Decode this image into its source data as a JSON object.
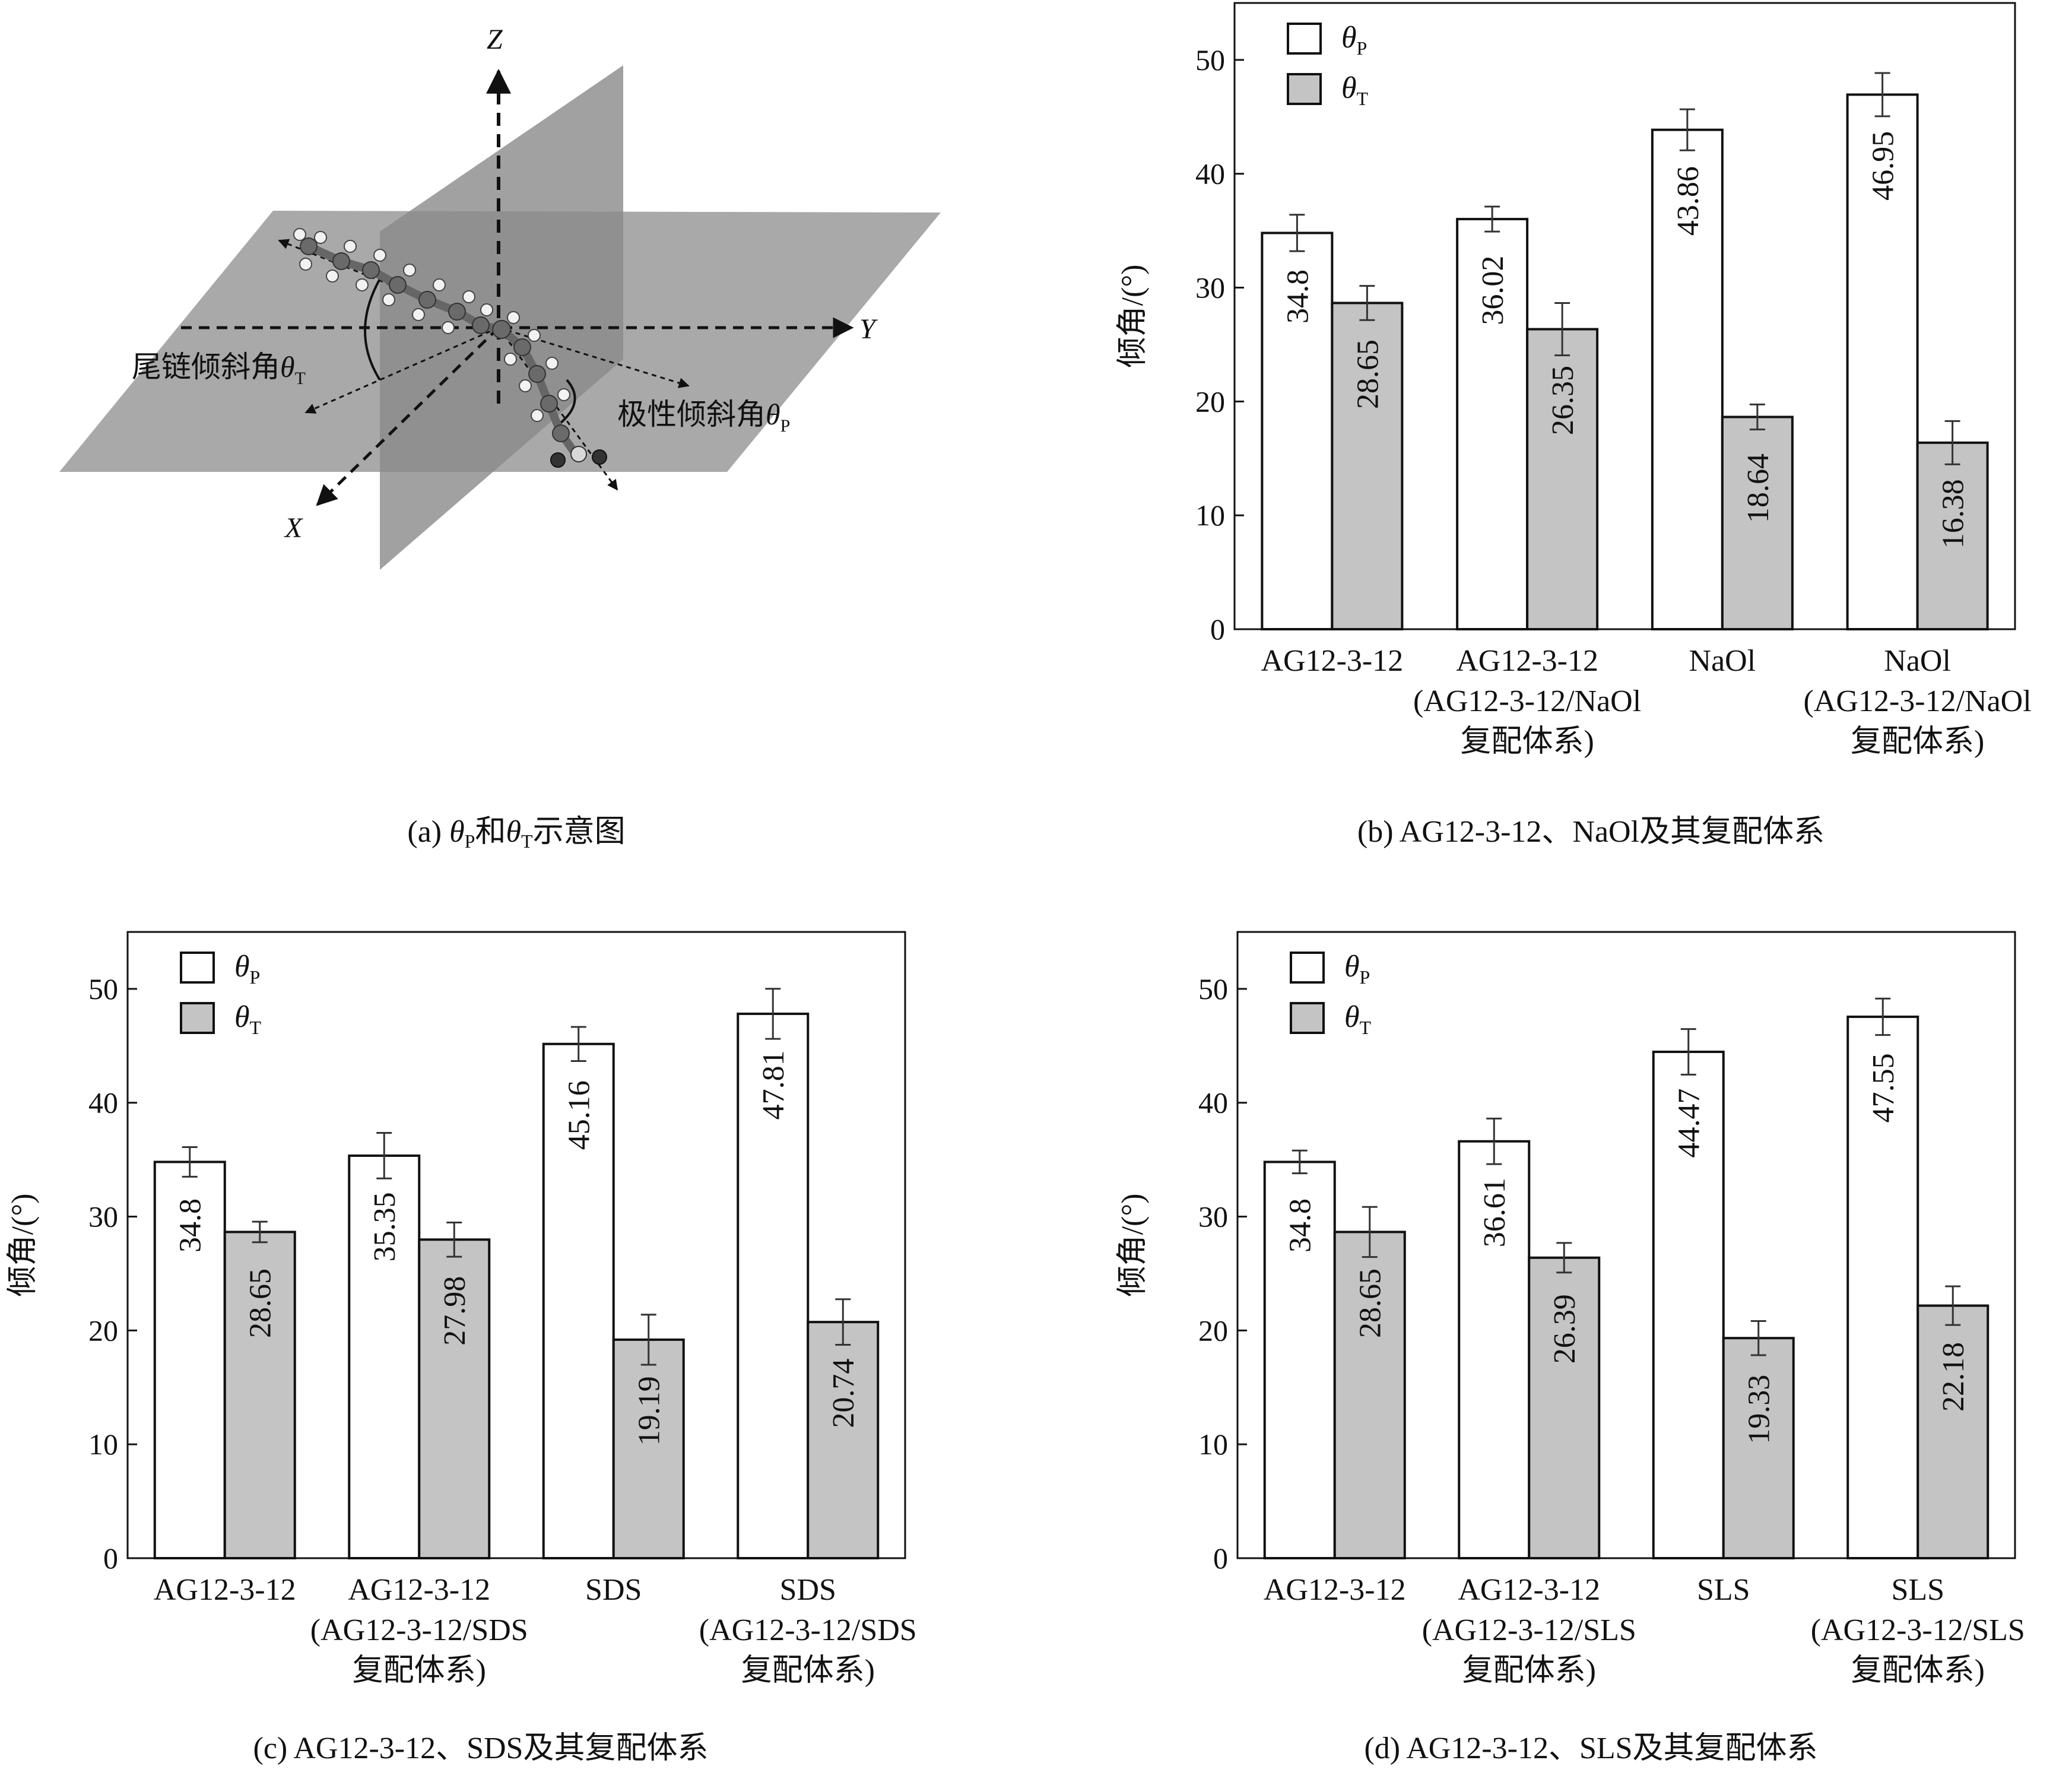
{
  "diagram": {
    "axis_z": "Z",
    "axis_y": "Y",
    "axis_x": "X",
    "tail_label": "尾链倾斜角",
    "polar_label": "极性倾斜角",
    "theta_symbol": "θ",
    "sub_t": "T",
    "sub_p": "P"
  },
  "captions": {
    "a_prefix": "(a) ",
    "a_mid": "和",
    "a_suffix": "示意图",
    "b": "(b) AG12-3-12、NaOl及其复配体系",
    "c": "(c) AG12-3-12、SDS及其复配体系",
    "d": "(d) AG12-3-12、SLS及其复配体系"
  },
  "chart_data": [
    {
      "type": "bar",
      "panel": "b",
      "ylabel": "倾角/(°)",
      "ylim": [
        0,
        55
      ],
      "yticks": [
        0,
        10,
        20,
        30,
        40,
        50
      ],
      "legend": "top-left",
      "grid": false,
      "categories": [
        [
          "AG12-3-12"
        ],
        [
          "AG12-3-12",
          "(AG12-3-12/NaOl",
          "复配体系)"
        ],
        [
          "NaOl"
        ],
        [
          "NaOl",
          "(AG12-3-12/NaOl",
          "复配体系)"
        ]
      ],
      "series": [
        {
          "name": "θP",
          "values": [
            34.8,
            36.02,
            43.86,
            46.95
          ],
          "labels": [
            "34.8",
            "36.02",
            "43.86",
            "46.95"
          ],
          "errors": [
            1.6,
            1.1,
            1.8,
            1.9
          ],
          "color": "#ffffff"
        },
        {
          "name": "θT",
          "values": [
            28.65,
            26.35,
            18.64,
            16.38
          ],
          "labels": [
            "28.65",
            "26.35",
            "18.64",
            "16.38"
          ],
          "errors": [
            1.5,
            2.3,
            1.1,
            1.9
          ],
          "color": "#c4c4c4"
        }
      ]
    },
    {
      "type": "bar",
      "panel": "c",
      "ylabel": "倾角/(°)",
      "ylim": [
        0,
        55
      ],
      "yticks": [
        0,
        10,
        20,
        30,
        40,
        50
      ],
      "legend": "top-left",
      "grid": false,
      "categories": [
        [
          "AG12-3-12"
        ],
        [
          "AG12-3-12",
          "(AG12-3-12/SDS",
          "复配体系)"
        ],
        [
          "SDS"
        ],
        [
          "SDS",
          "(AG12-3-12/SDS",
          "复配体系)"
        ]
      ],
      "series": [
        {
          "name": "θP",
          "values": [
            34.8,
            35.35,
            45.16,
            47.81
          ],
          "labels": [
            "34.8",
            "35.35",
            "45.16",
            "47.81"
          ],
          "errors": [
            1.3,
            2.0,
            1.5,
            2.2
          ],
          "color": "#ffffff"
        },
        {
          "name": "θT",
          "values": [
            28.65,
            27.98,
            19.19,
            20.74
          ],
          "labels": [
            "28.65",
            "27.98",
            "19.19",
            "20.74"
          ],
          "errors": [
            0.9,
            1.5,
            2.2,
            2.0
          ],
          "color": "#c4c4c4"
        }
      ]
    },
    {
      "type": "bar",
      "panel": "d",
      "ylabel": "倾角/(°)",
      "ylim": [
        0,
        55
      ],
      "yticks": [
        0,
        10,
        20,
        30,
        40,
        50
      ],
      "legend": "top-left",
      "grid": false,
      "categories": [
        [
          "AG12-3-12"
        ],
        [
          "AG12-3-12",
          "(AG12-3-12/SLS",
          "复配体系)"
        ],
        [
          "SLS"
        ],
        [
          "SLS",
          "(AG12-3-12/SLS",
          "复配体系)"
        ]
      ],
      "series": [
        {
          "name": "θP",
          "values": [
            34.8,
            36.61,
            44.47,
            47.55
          ],
          "labels": [
            "34.8",
            "36.61",
            "44.47",
            "47.55"
          ],
          "errors": [
            1.0,
            2.0,
            2.0,
            1.6
          ],
          "color": "#ffffff"
        },
        {
          "name": "θT",
          "values": [
            28.65,
            26.39,
            19.33,
            22.18
          ],
          "labels": [
            "28.65",
            "26.39",
            "19.33",
            "22.18"
          ],
          "errors": [
            2.2,
            1.3,
            1.5,
            1.7
          ],
          "color": "#c4c4c4"
        }
      ]
    }
  ]
}
